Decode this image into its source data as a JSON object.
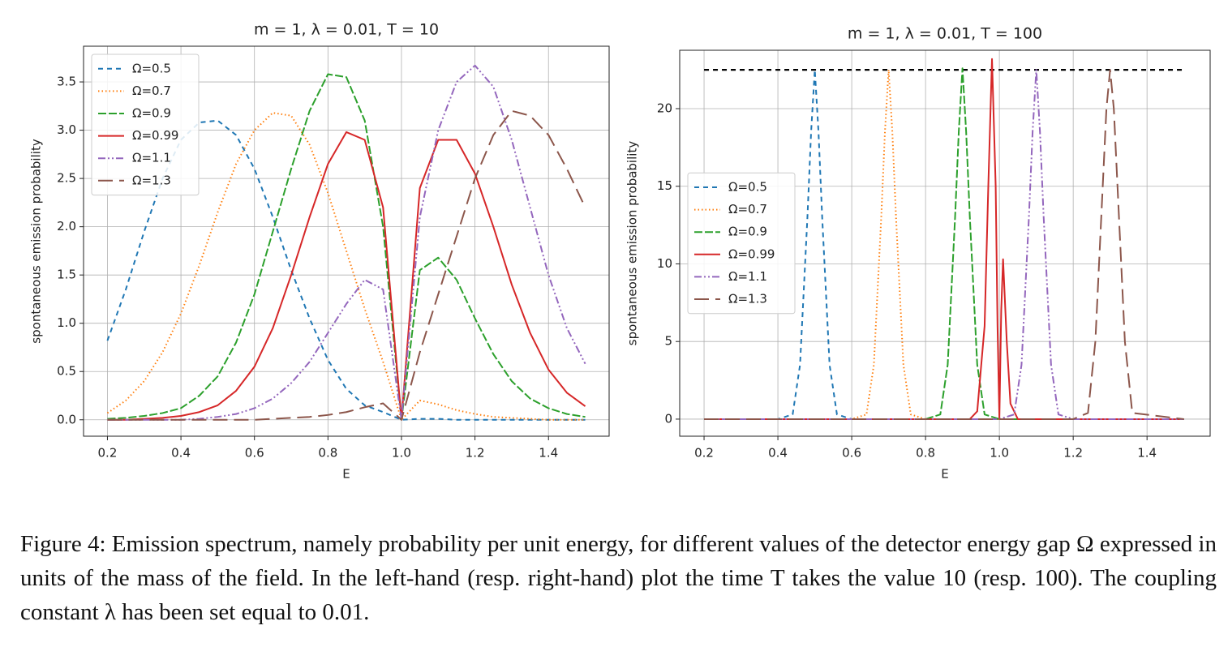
{
  "chart_data": [
    {
      "type": "line",
      "title": "m = 1, λ = 0.01, T = 10",
      "xlabel": "E",
      "ylabel": "spontaneous emission probability",
      "x": [
        0.2,
        0.25,
        0.3,
        0.35,
        0.4,
        0.45,
        0.5,
        0.55,
        0.6,
        0.65,
        0.7,
        0.75,
        0.8,
        0.85,
        0.9,
        0.95,
        1.0,
        1.05,
        1.1,
        1.15,
        1.2,
        1.25,
        1.3,
        1.35,
        1.4,
        1.45,
        1.5
      ],
      "series": [
        {
          "name": "Ω=0.5",
          "color": "#1f77b4",
          "linestyle": "dashed",
          "values": [
            0.82,
            1.35,
            1.95,
            2.5,
            2.9,
            3.08,
            3.1,
            2.95,
            2.6,
            2.1,
            1.55,
            1.05,
            0.62,
            0.32,
            0.15,
            0.08,
            0,
            0.01,
            0.01,
            0,
            0,
            0,
            0,
            0,
            0,
            0,
            0
          ]
        },
        {
          "name": "Ω=0.7",
          "color": "#ff7f0e",
          "linestyle": "dotted",
          "values": [
            0.07,
            0.2,
            0.4,
            0.7,
            1.1,
            1.6,
            2.15,
            2.65,
            3.0,
            3.18,
            3.15,
            2.85,
            2.35,
            1.75,
            1.15,
            0.6,
            0,
            0.2,
            0.16,
            0.1,
            0.06,
            0.03,
            0.02,
            0.01,
            0,
            0,
            0
          ]
        },
        {
          "name": "Ω=0.9",
          "color": "#2ca02c",
          "linestyle": "dashed-long",
          "values": [
            0.01,
            0.02,
            0.04,
            0.07,
            0.12,
            0.25,
            0.45,
            0.8,
            1.3,
            1.95,
            2.6,
            3.2,
            3.58,
            3.55,
            3.1,
            2.0,
            0,
            1.55,
            1.68,
            1.45,
            1.05,
            0.68,
            0.4,
            0.22,
            0.12,
            0.06,
            0.03
          ]
        },
        {
          "name": "Ω=0.99",
          "color": "#d62728",
          "linestyle": "solid",
          "values": [
            0,
            0,
            0.01,
            0.02,
            0.04,
            0.08,
            0.15,
            0.3,
            0.55,
            0.95,
            1.5,
            2.1,
            2.65,
            2.98,
            2.9,
            2.2,
            0,
            2.4,
            2.9,
            2.9,
            2.55,
            2.0,
            1.4,
            0.9,
            0.52,
            0.28,
            0.14
          ]
        },
        {
          "name": "Ω=1.1",
          "color": "#9467bd",
          "linestyle": "dashdotdot",
          "values": [
            0,
            0,
            0,
            0,
            0,
            0.01,
            0.03,
            0.06,
            0.12,
            0.22,
            0.38,
            0.6,
            0.9,
            1.2,
            1.45,
            1.35,
            0,
            2.1,
            3.0,
            3.5,
            3.67,
            3.45,
            2.9,
            2.2,
            1.5,
            0.95,
            0.58
          ]
        },
        {
          "name": "Ω=1.3",
          "color": "#8c564b",
          "linestyle": "longdash",
          "values": [
            0,
            0,
            0,
            0,
            0,
            0,
            0,
            0,
            0,
            0.01,
            0.02,
            0.03,
            0.05,
            0.08,
            0.13,
            0.17,
            0,
            0.7,
            1.3,
            1.9,
            2.5,
            2.95,
            3.2,
            3.15,
            2.95,
            2.6,
            2.2
          ]
        }
      ],
      "xlim": [
        0.135,
        1.565
      ],
      "ylim": [
        -0.17,
        3.87
      ],
      "xticks": [
        0.2,
        0.4,
        0.6,
        0.8,
        {
          "value": 1,
          "label": "1.0"
        },
        1.2,
        1.4
      ],
      "yticks": [
        {
          "value": 0,
          "label": "0.0"
        },
        0.5,
        {
          "value": 1,
          "label": "1.0"
        },
        1.5,
        {
          "value": 2,
          "label": "2.0"
        },
        2.5,
        {
          "value": 3,
          "label": "3.0"
        },
        3.5
      ],
      "grid": true,
      "legend": "upper left"
    },
    {
      "type": "line",
      "title": "m = 1, λ = 0.01, T = 100",
      "xlabel": "E",
      "ylabel": "spontaneous emission probability",
      "series": [
        {
          "name": "Ω=0.5",
          "color": "#1f77b4",
          "linestyle": "dashed",
          "x": [
            0.2,
            0.4,
            0.44,
            0.46,
            0.48,
            0.49,
            0.5,
            0.51,
            0.52,
            0.54,
            0.56,
            0.6,
            1.5
          ],
          "values": [
            0,
            0,
            0.3,
            3.5,
            13,
            18.5,
            22.5,
            18.5,
            13,
            3.5,
            0.3,
            0,
            0
          ]
        },
        {
          "name": "Ω=0.7",
          "color": "#ff7f0e",
          "linestyle": "dotted",
          "x": [
            0.2,
            0.6,
            0.64,
            0.66,
            0.68,
            0.69,
            0.7,
            0.71,
            0.72,
            0.74,
            0.76,
            0.8,
            1.5
          ],
          "values": [
            0,
            0,
            0.3,
            3.5,
            13,
            18.5,
            22.5,
            18.5,
            13,
            3.5,
            0.3,
            0,
            0
          ]
        },
        {
          "name": "Ω=0.9",
          "color": "#2ca02c",
          "linestyle": "dashed-long",
          "x": [
            0.2,
            0.8,
            0.84,
            0.86,
            0.88,
            0.89,
            0.9,
            0.91,
            0.92,
            0.94,
            0.96,
            1.0,
            1.5
          ],
          "values": [
            0,
            0,
            0.3,
            3.5,
            13,
            18.5,
            22.6,
            18.5,
            13,
            3.5,
            0.3,
            0,
            0
          ]
        },
        {
          "name": "Ω=0.99",
          "color": "#d62728",
          "linestyle": "solid",
          "x": [
            0.2,
            0.92,
            0.94,
            0.96,
            0.97,
            0.98,
            0.99,
            0.995,
            1.0,
            1.005,
            1.01,
            1.02,
            1.03,
            1.05,
            1.5
          ],
          "values": [
            0,
            0,
            0.5,
            6,
            15,
            23.2,
            15,
            6,
            0,
            7,
            10.3,
            5,
            1,
            0,
            0
          ]
        },
        {
          "name": "Ω=1.1",
          "color": "#9467bd",
          "linestyle": "dashdotdot",
          "x": [
            0.2,
            1.0,
            1.04,
            1.06,
            1.08,
            1.09,
            1.1,
            1.11,
            1.12,
            1.14,
            1.16,
            1.2,
            1.5
          ],
          "values": [
            0,
            0,
            0.3,
            3.5,
            13,
            18.5,
            22.5,
            18.5,
            13,
            3.5,
            0.3,
            0,
            0
          ]
        },
        {
          "name": "Ω=1.3",
          "color": "#8c564b",
          "linestyle": "longdash",
          "x": [
            0.2,
            1.2,
            1.24,
            1.26,
            1.28,
            1.29,
            1.3,
            1.31,
            1.32,
            1.34,
            1.36,
            1.5
          ],
          "values": [
            0,
            0,
            0.4,
            5,
            15,
            20,
            22.5,
            20,
            15,
            5,
            0.4,
            0
          ]
        }
      ],
      "hline": {
        "y": 22.5,
        "xmin": 0.2,
        "xmax": 1.5,
        "color": "#000000",
        "linestyle": "dashed"
      },
      "xlim": [
        0.134,
        1.571
      ],
      "ylim": [
        -1.1,
        23.76
      ],
      "xticks": [
        0.2,
        0.4,
        0.6,
        0.8,
        {
          "value": 1,
          "label": "1.0"
        },
        1.2,
        1.4
      ],
      "yticks": [
        0,
        5,
        10,
        15,
        20
      ],
      "grid": true,
      "legend": "center left"
    }
  ],
  "caption": "Figure 4: Emission spectrum, namely probability per unit energy, for different values of the detector energy gap Ω expressed in units of the mass of the field. In the left-hand (resp. right-hand) plot the time T takes the value 10 (resp. 100). The coupling constant λ has been set equal to 0.01."
}
